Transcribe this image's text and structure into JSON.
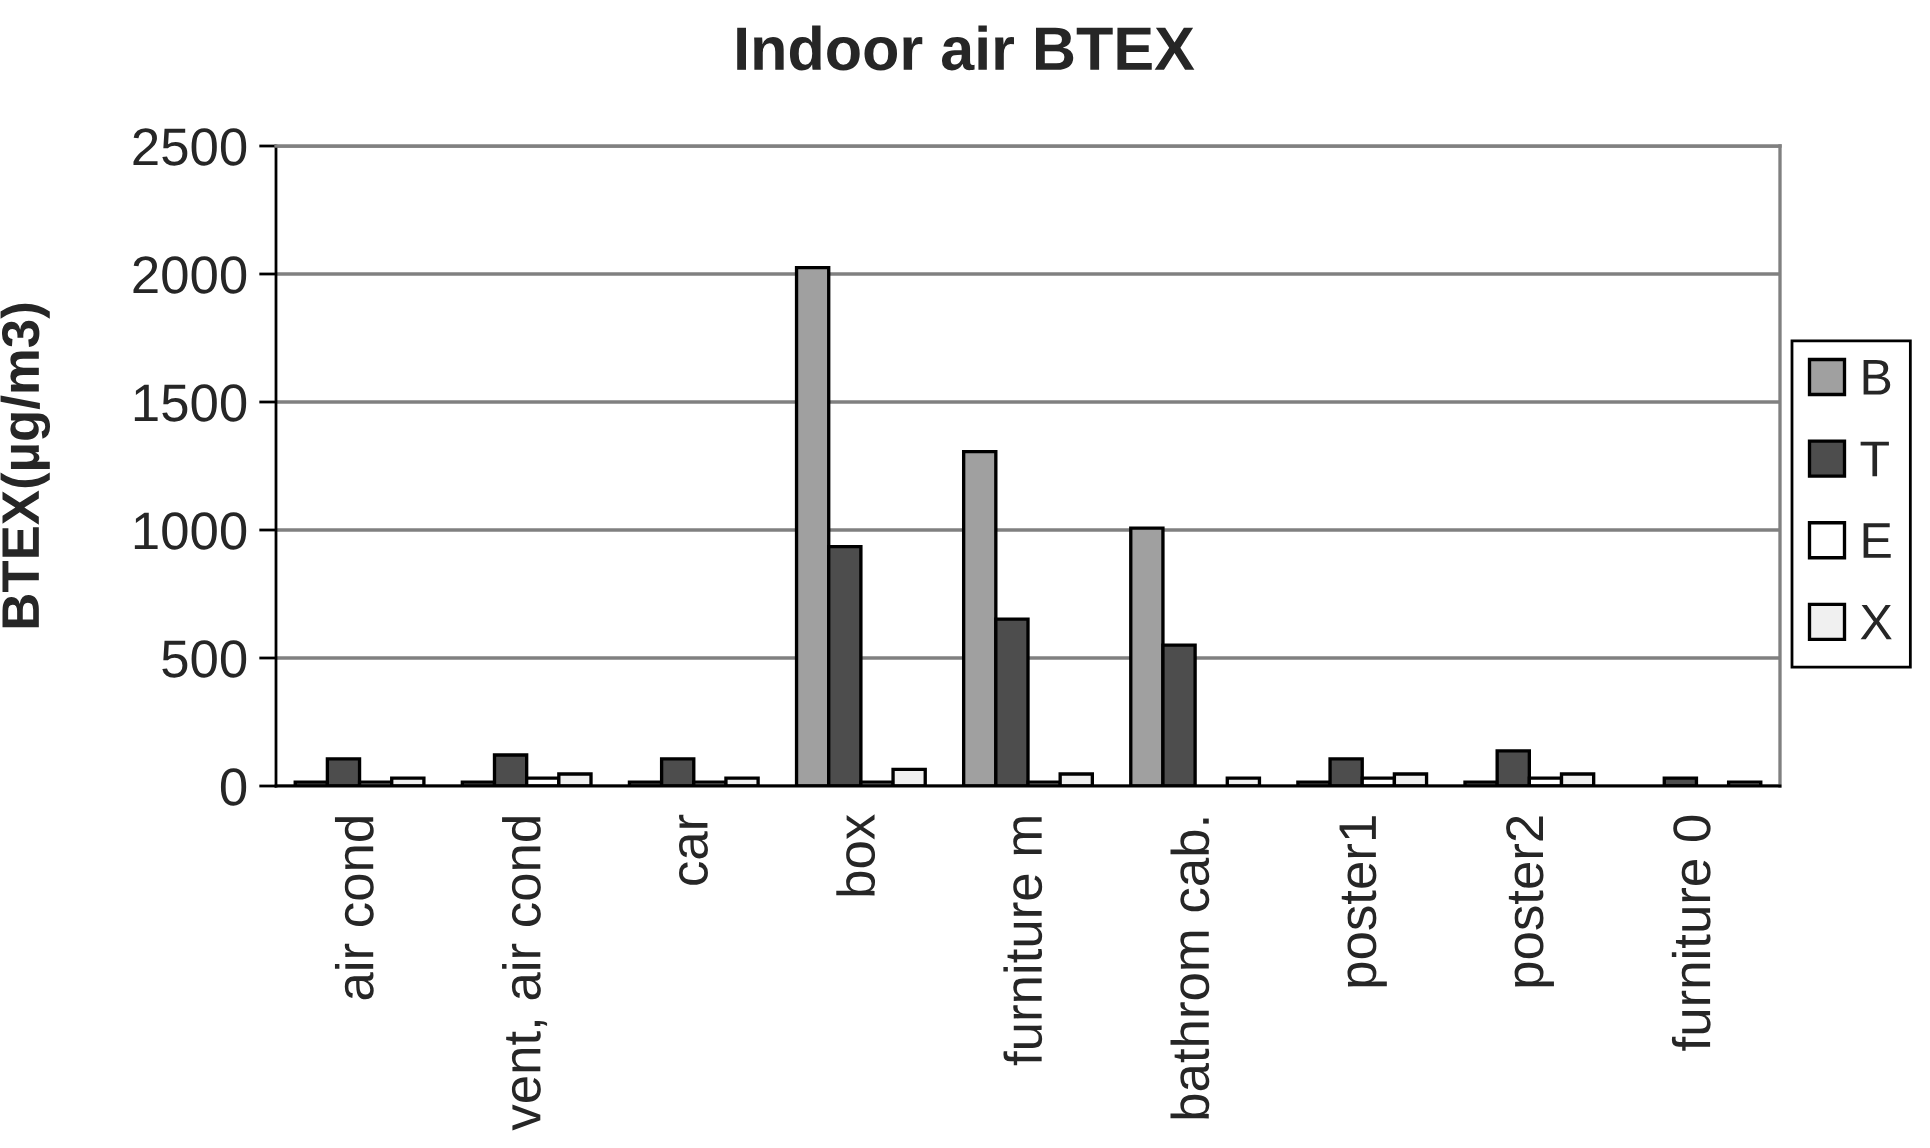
{
  "chart_data": {
    "type": "bar",
    "title": "Indoor air BTEX",
    "ylabel": "BTEX(µg/m3)",
    "categories": [
      "air cond",
      "vent, air cond",
      "car",
      "box",
      "furniture m",
      "bathrom cab.",
      "poster1",
      "poster2",
      "furniture 0"
    ],
    "series": [
      {
        "name": "B",
        "color": "#a0a0a0",
        "values": [
          15,
          15,
          15,
          2025,
          1306,
          1007,
          15,
          15,
          null
        ]
      },
      {
        "name": "T",
        "color": "#4d4d4d",
        "values": [
          106,
          121,
          106,
          935,
          652,
          550,
          106,
          137,
          31
        ]
      },
      {
        "name": "E",
        "color": "#ffffff",
        "values": [
          15,
          31,
          15,
          15,
          15,
          null,
          31,
          31,
          null
        ]
      },
      {
        "name": "X",
        "color": "#f0f0f0",
        "values": [
          31,
          47,
          31,
          65,
          47,
          31,
          47,
          47,
          15
        ]
      }
    ],
    "ylim": [
      0,
      2500
    ],
    "yticks": [
      0,
      500,
      1000,
      1500,
      2000,
      2500
    ],
    "grid": "y",
    "legend": "right"
  }
}
